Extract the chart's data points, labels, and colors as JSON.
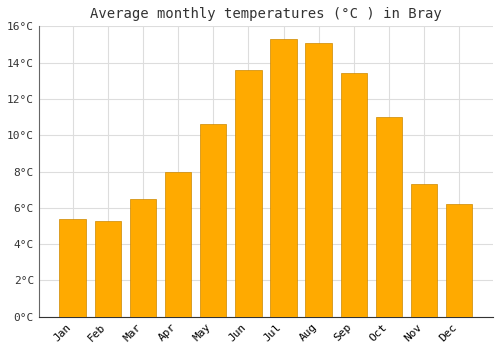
{
  "title": "Average monthly temperatures (°C ) in Bray",
  "months": [
    "Jan",
    "Feb",
    "Mar",
    "Apr",
    "May",
    "Jun",
    "Jul",
    "Aug",
    "Sep",
    "Oct",
    "Nov",
    "Dec"
  ],
  "values": [
    5.4,
    5.3,
    6.5,
    8.0,
    10.6,
    13.6,
    15.3,
    15.1,
    13.4,
    11.0,
    7.3,
    6.2
  ],
  "bar_color": "#FFAA00",
  "bar_edge_color": "#CC8800",
  "background_color": "#FFFFFF",
  "grid_color": "#DDDDDD",
  "title_fontsize": 10,
  "tick_fontsize": 8,
  "ylim": [
    0,
    16
  ],
  "yticks": [
    0,
    2,
    4,
    6,
    8,
    10,
    12,
    14,
    16
  ]
}
